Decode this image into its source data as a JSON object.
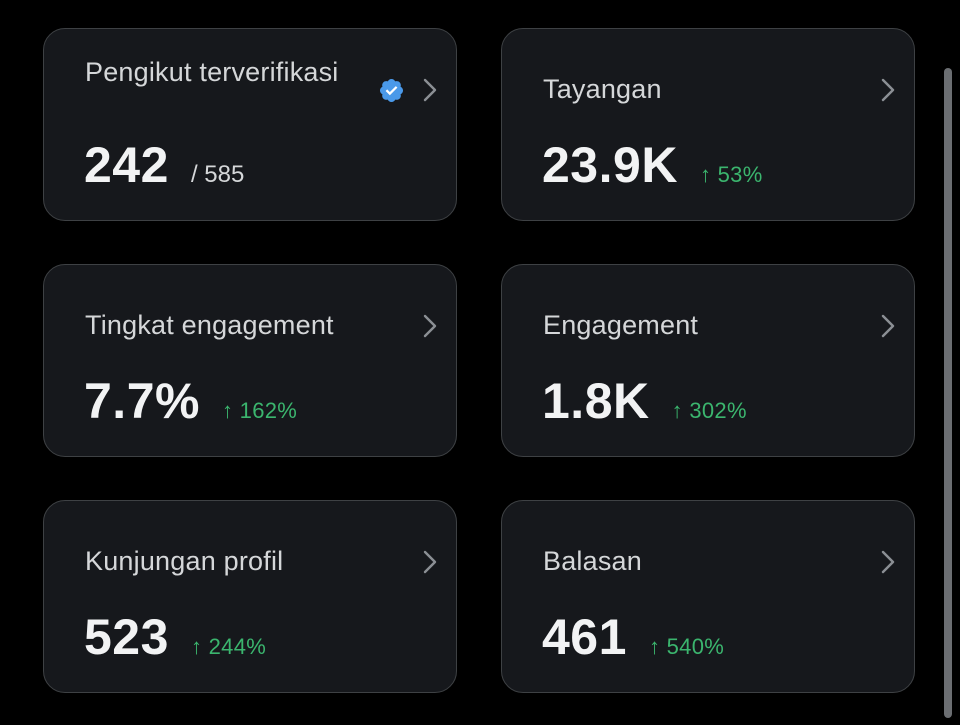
{
  "cards": [
    {
      "label": "Pengikut terverifikasi",
      "value": "242",
      "denominator": "/ 585",
      "verified_icon": "verified-badge-icon",
      "verified_color": "#4a99e9"
    },
    {
      "label": "Tayangan",
      "value": "23.9K",
      "change": "↑ 53%"
    },
    {
      "label": "Tingkat engagement",
      "value": "7.7%",
      "change": "↑ 162%"
    },
    {
      "label": "Engagement",
      "value": "1.8K",
      "change": "↑ 302%"
    },
    {
      "label": "Kunjungan profil",
      "value": "523",
      "change": "↑ 244%"
    },
    {
      "label": "Balasan",
      "value": "461",
      "change": "↑ 540%"
    }
  ],
  "colors": {
    "background": "#000000",
    "card_background": "#16181c",
    "card_border": "#3e4144",
    "positive_change": "#3bb56e",
    "chevron": "#8b8f94"
  },
  "icons": {
    "chevron": "chevron-right-icon",
    "verified": "verified-badge-icon"
  }
}
